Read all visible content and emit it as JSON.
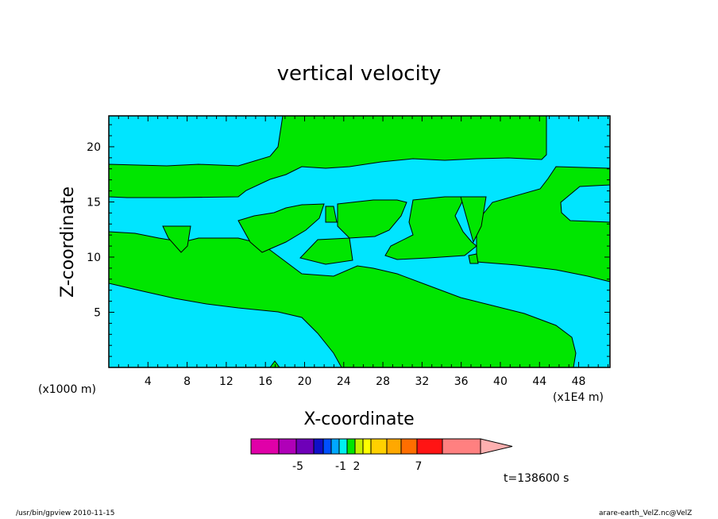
{
  "chart_data": {
    "type": "contour",
    "title": "vertical velocity",
    "xlabel": "X-coordinate",
    "ylabel": "Z-coordinate",
    "x_unit_label": "(x1000 m)",
    "y_unit_label": "(x1E4 m)",
    "x_ticks": [
      "4",
      "8",
      "12",
      "16",
      "20",
      "24",
      "28",
      "32",
      "36",
      "40",
      "44",
      "48"
    ],
    "y_ticks": [
      "5",
      "10",
      "15",
      "20"
    ],
    "xlim": [
      0,
      51.2
    ],
    "ylim": [
      0,
      22.8
    ],
    "grid": false,
    "fill_colors": {
      "negative": "#00e5ff",
      "positive": "#00e600"
    },
    "colorbar": {
      "colors": [
        "#e000a8",
        "#b000b8",
        "#6e00b8",
        "#1010c8",
        "#0050ff",
        "#00a8ff",
        "#00f0f0",
        "#00e600",
        "#c8f000",
        "#ffff00",
        "#ffd000",
        "#ffa800",
        "#ff6e00",
        "#ff1414",
        "#ff8080"
      ],
      "labels": [
        "-5",
        "-1",
        "2",
        "7"
      ]
    },
    "annotation": "t=138600 s"
  },
  "footer": {
    "left": "/usr/bin/gpview   2010-11-15",
    "right": "arare-earth_VelZ.nc@VelZ"
  }
}
